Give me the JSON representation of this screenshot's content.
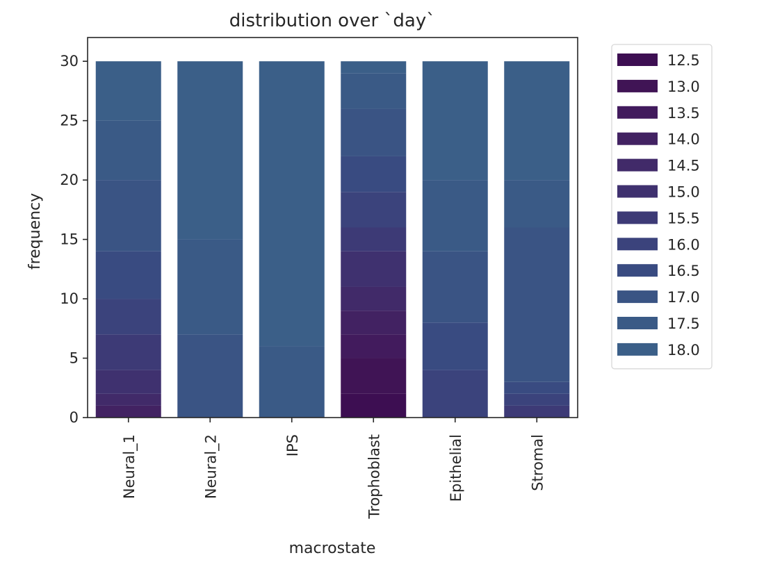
{
  "chart_data": {
    "type": "bar",
    "stacked": true,
    "title": "distribution over `day`",
    "xlabel": "macrostate",
    "ylabel": "frequency",
    "categories": [
      "Neural_1",
      "Neural_2",
      "IPS",
      "Trophoblast",
      "Epithelial",
      "Stromal"
    ],
    "ylim": [
      0,
      32
    ],
    "yticks": [
      0,
      5,
      10,
      15,
      20,
      25,
      30
    ],
    "grid": false,
    "legend_position": "outside-right",
    "series": [
      {
        "name": "12.5",
        "color": "#3d0e52",
        "values": [
          0,
          0,
          0,
          2,
          0,
          0
        ]
      },
      {
        "name": "13.0",
        "color": "#401455",
        "values": [
          0,
          0,
          0,
          3,
          0,
          0
        ]
      },
      {
        "name": "13.5",
        "color": "#421b5d",
        "values": [
          0,
          0,
          0,
          2,
          0,
          0
        ]
      },
      {
        "name": "14.0",
        "color": "#422262",
        "values": [
          1,
          0,
          0,
          2,
          0,
          0
        ]
      },
      {
        "name": "14.5",
        "color": "#412a69",
        "values": [
          1,
          0,
          0,
          2,
          0,
          0
        ]
      },
      {
        "name": "15.0",
        "color": "#3f316f",
        "values": [
          2,
          0,
          0,
          3,
          0,
          0
        ]
      },
      {
        "name": "15.5",
        "color": "#3d3a76",
        "values": [
          3,
          0,
          0,
          2,
          0,
          1
        ]
      },
      {
        "name": "16.0",
        "color": "#3b437c",
        "values": [
          3,
          0,
          0,
          3,
          4,
          1
        ]
      },
      {
        "name": "16.5",
        "color": "#394b81",
        "values": [
          4,
          0,
          0,
          3,
          4,
          1
        ]
      },
      {
        "name": "17.0",
        "color": "#3a5484",
        "values": [
          6,
          7,
          0,
          4,
          6,
          13
        ]
      },
      {
        "name": "17.5",
        "color": "#3a5a86",
        "values": [
          5,
          8,
          6,
          3,
          6,
          4
        ]
      },
      {
        "name": "18.0",
        "color": "#3b5f88",
        "values": [
          5,
          15,
          24,
          1,
          10,
          10
        ]
      }
    ]
  }
}
